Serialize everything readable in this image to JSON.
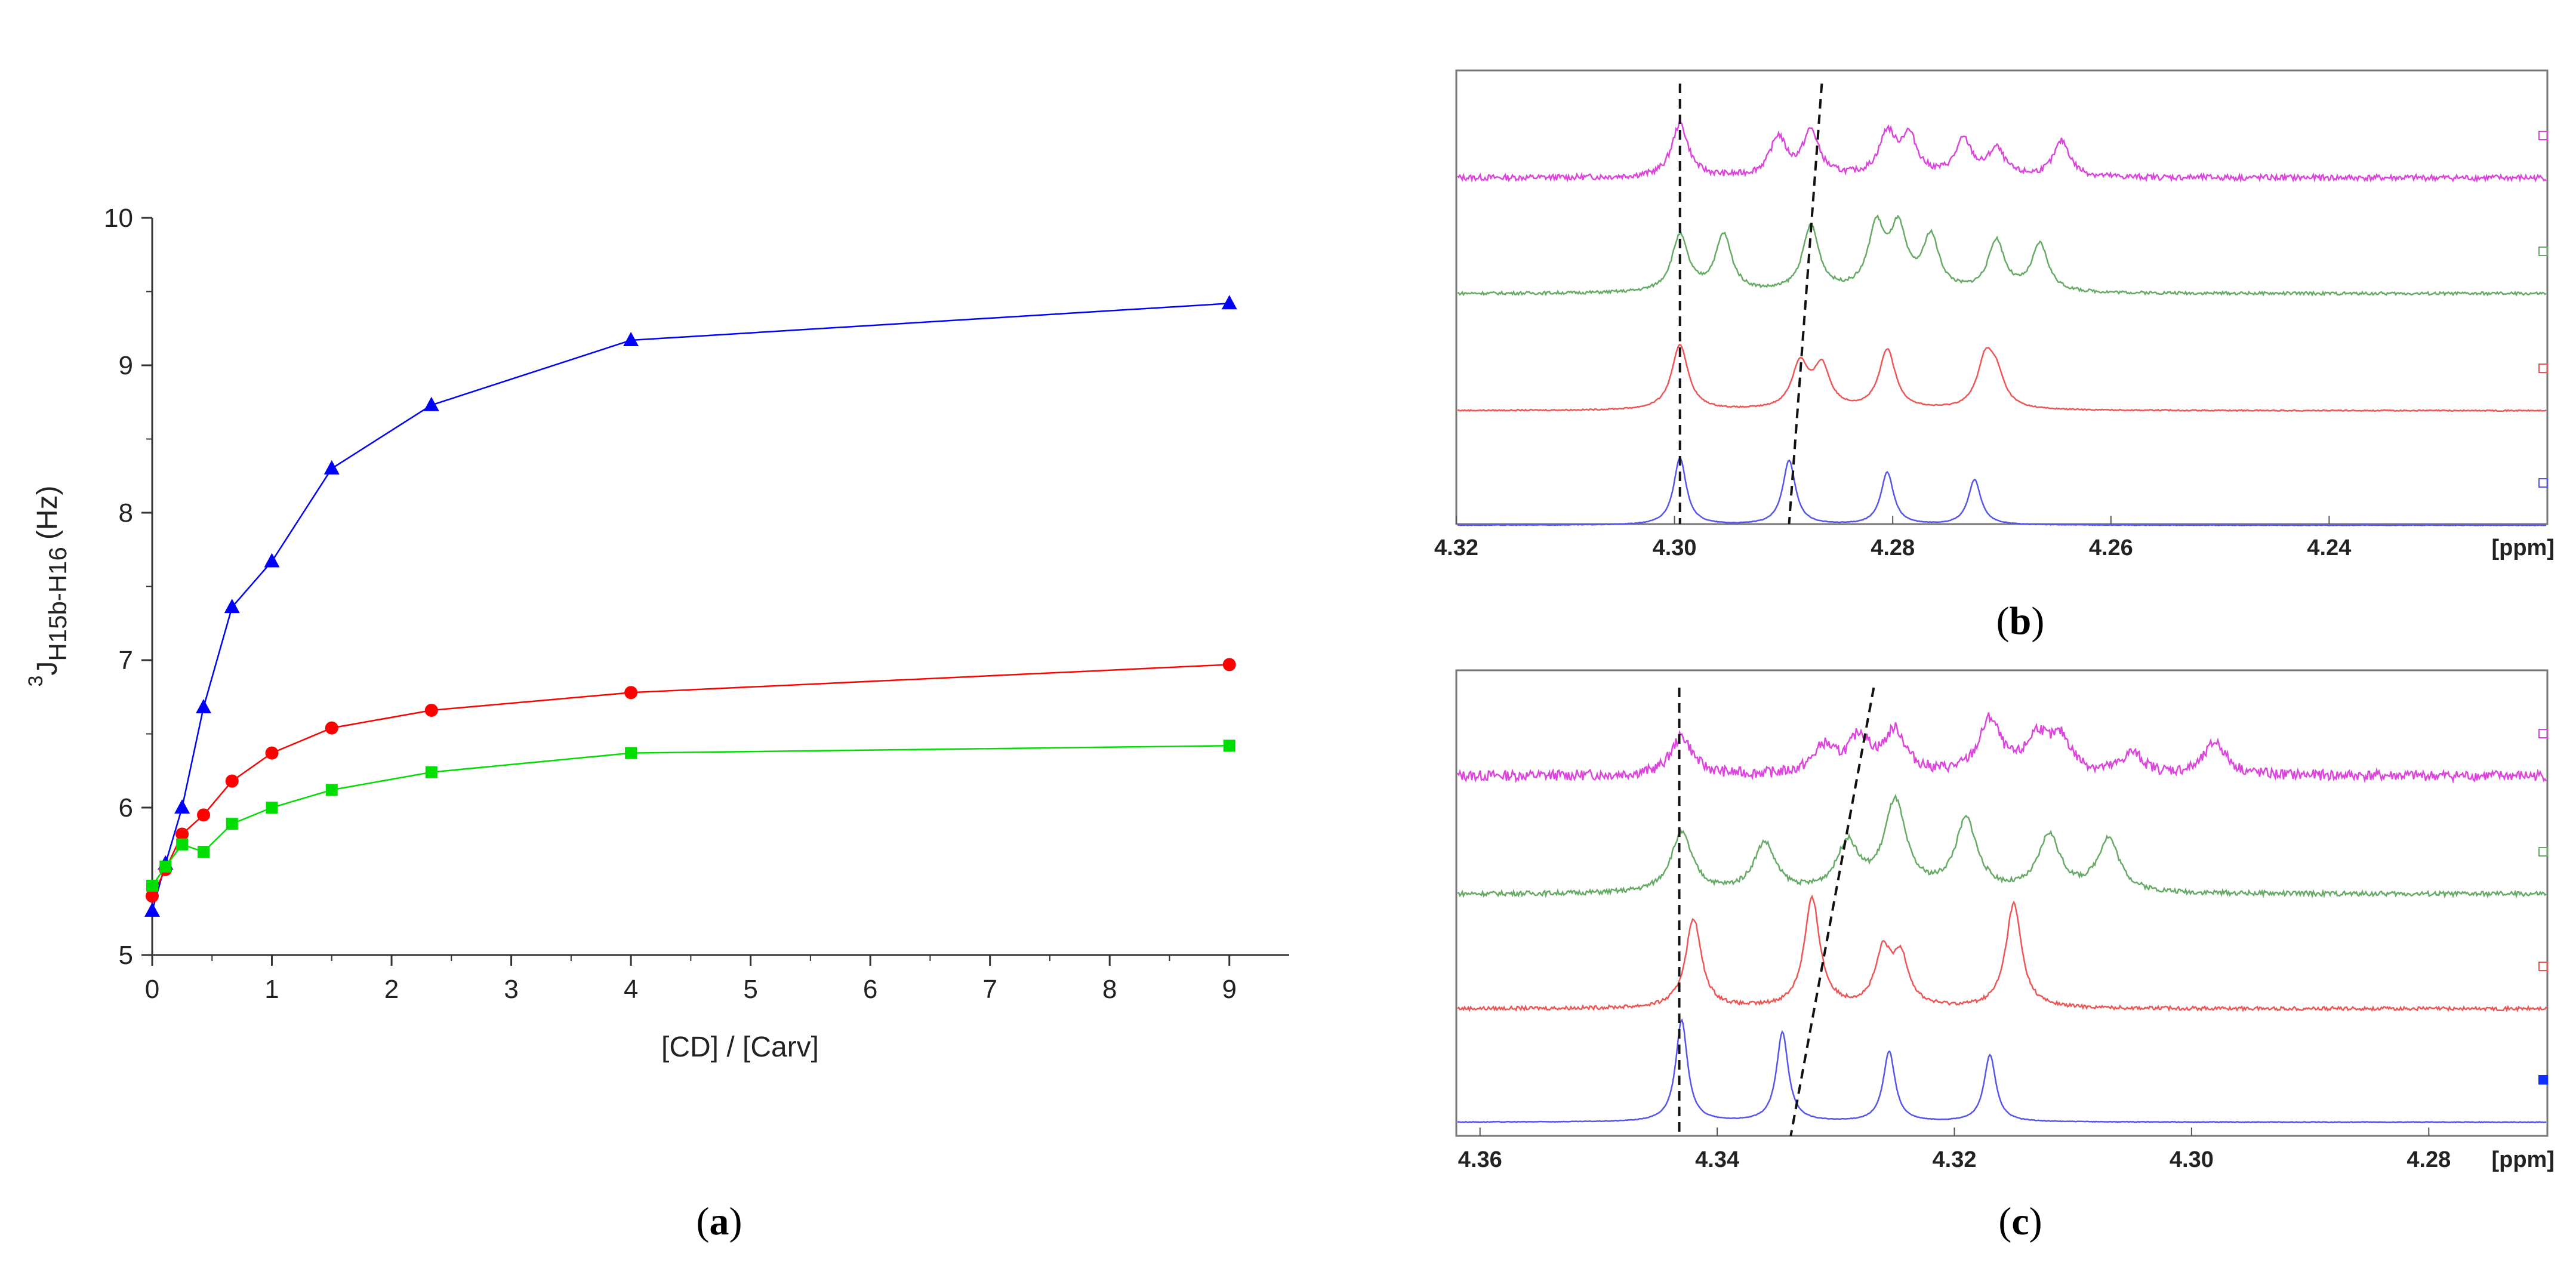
{
  "panels": {
    "a": {
      "open": "(",
      "letter": "a",
      "close": ")"
    },
    "b": {
      "open": "(",
      "letter": "b",
      "close": ")"
    },
    "c": {
      "open": "(",
      "letter": "c",
      "close": ")"
    }
  },
  "chart_data": [
    {
      "type": "line",
      "panel": "a",
      "title": "",
      "xlabel": "[CD] / [Carv]",
      "ylabel": {
        "superscript": "3",
        "base": "J",
        "subscript": "H15b-H16",
        "unit": "(Hz)"
      },
      "xlim": [
        0,
        9.5
      ],
      "ylim": [
        5,
        10
      ],
      "xticks": [
        0,
        1,
        2,
        3,
        4,
        5,
        6,
        7,
        8,
        9
      ],
      "yticks": [
        5,
        6,
        7,
        8,
        9,
        10
      ],
      "grid": false,
      "series": [
        {
          "name": "blue triangles",
          "color": "#0000ff",
          "marker": "triangle",
          "x": [
            0,
            0.111,
            0.25,
            0.429,
            0.667,
            1,
            1.5,
            2.333,
            4,
            9
          ],
          "y": [
            5.3,
            5.62,
            6.0,
            6.68,
            7.36,
            7.67,
            8.3,
            8.73,
            9.17,
            9.42
          ]
        },
        {
          "name": "red circles",
          "color": "#ff0000",
          "marker": "circle",
          "x": [
            0,
            0.111,
            0.25,
            0.429,
            0.667,
            1,
            1.5,
            2.333,
            4,
            9
          ],
          "y": [
            5.4,
            5.58,
            5.82,
            5.95,
            6.18,
            6.37,
            6.54,
            6.66,
            6.78,
            6.97
          ]
        },
        {
          "name": "green squares",
          "color": "#00dd00",
          "marker": "square",
          "x": [
            0,
            0.111,
            0.25,
            0.429,
            0.667,
            1,
            1.5,
            2.333,
            4,
            9
          ],
          "y": [
            5.47,
            5.6,
            5.75,
            5.7,
            5.89,
            6.0,
            6.12,
            6.24,
            6.37,
            6.42
          ]
        }
      ]
    },
    {
      "type": "line",
      "panel": "b",
      "title": "",
      "xlabel": "[ppm]",
      "xlim": [
        4.32,
        4.22
      ],
      "xticks": [
        "4.32",
        "4.30",
        "4.28",
        "4.26",
        "4.24"
      ],
      "grid": false,
      "series": [
        {
          "name": "magenta spectrum",
          "color": "#dd44dd",
          "peaks_ppm": [
            4.2995,
            4.2905,
            4.2875,
            4.2805,
            4.2785,
            4.2735,
            4.2705,
            4.2645
          ]
        },
        {
          "name": "green spectrum",
          "color": "#66aa66",
          "peaks_ppm": [
            4.2995,
            4.2955,
            4.2875,
            4.2815,
            4.2795,
            4.2765,
            4.2705,
            4.2665
          ]
        },
        {
          "name": "red spectrum",
          "color": "#ee5555",
          "peaks_ppm": [
            4.2995,
            4.2885,
            4.2865,
            4.2805,
            4.2715,
            4.2705
          ]
        },
        {
          "name": "blue spectrum",
          "color": "#5555ee",
          "peaks_ppm": [
            4.2995,
            4.2895,
            4.2805,
            4.2725
          ]
        }
      ],
      "dashed_lines": [
        {
          "label": "vertical guide",
          "ppm_top": 4.2995,
          "ppm_bottom": 4.2995
        },
        {
          "label": "shift guide",
          "ppm_top": 4.2865,
          "ppm_bottom": 4.2895
        }
      ]
    },
    {
      "type": "line",
      "panel": "c",
      "title": "",
      "xlabel": "[ppm]",
      "xlim": [
        4.362,
        4.27
      ],
      "xticks": [
        "4.36",
        "4.34",
        "4.32",
        "4.30",
        "4.28"
      ],
      "grid": false,
      "series": [
        {
          "name": "magenta spectrum",
          "color": "#dd44dd",
          "peaks_ppm": [
            4.343,
            4.331,
            4.328,
            4.325,
            4.317,
            4.313,
            4.311,
            4.305,
            4.298
          ]
        },
        {
          "name": "green spectrum",
          "color": "#66aa66",
          "peaks_ppm": [
            4.343,
            4.336,
            4.329,
            4.325,
            4.319,
            4.312,
            4.307
          ]
        },
        {
          "name": "red spectrum",
          "color": "#ee5555",
          "peaks_ppm": [
            4.342,
            4.332,
            4.326,
            4.3245,
            4.315
          ]
        },
        {
          "name": "blue spectrum",
          "color": "#5555ee",
          "peaks_ppm": [
            4.343,
            4.3345,
            4.3255,
            4.317
          ]
        }
      ],
      "dashed_lines": [
        {
          "label": "vertical guide",
          "ppm_top": 4.3432,
          "ppm_bottom": 4.3432
        },
        {
          "label": "shift guide",
          "ppm_top": 4.3268,
          "ppm_bottom": 4.3338
        }
      ]
    }
  ]
}
